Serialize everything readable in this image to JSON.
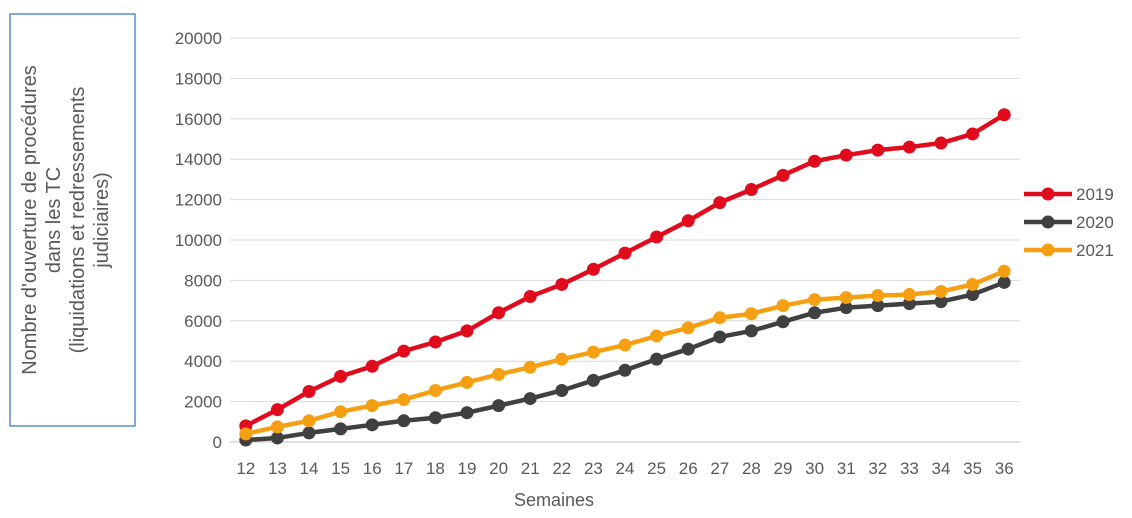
{
  "chart_data": {
    "type": "line",
    "title": "",
    "xlabel": "Semaines",
    "ylabel_lines": [
      "Nombre d'ouverture de procédures",
      "dans les TC",
      "(liquidations et redressements",
      "judiciaires)"
    ],
    "x": [
      "12",
      "13",
      "14",
      "15",
      "16",
      "17",
      "18",
      "19",
      "20",
      "21",
      "22",
      "23",
      "24",
      "25",
      "26",
      "27",
      "28",
      "29",
      "30",
      "31",
      "32",
      "33",
      "34",
      "35",
      "36"
    ],
    "ylim": [
      0,
      20000
    ],
    "yticks": [
      0,
      2000,
      4000,
      6000,
      8000,
      10000,
      12000,
      14000,
      16000,
      18000,
      20000
    ],
    "yticklabels": [
      "0",
      "2000",
      "4000",
      "6000",
      "8000",
      "10000",
      "12000",
      "14000",
      "16000",
      "18000",
      "20000"
    ],
    "grid": true,
    "legend_position": "right",
    "series": [
      {
        "name": "2019",
        "color": "#e00b1c",
        "values": [
          800,
          1600,
          2500,
          3250,
          3750,
          4500,
          4950,
          5500,
          6400,
          7200,
          7800,
          8550,
          9350,
          10150,
          10950,
          11850,
          12500,
          13200,
          13900,
          14200,
          14450,
          14600,
          14800,
          15250,
          16200
        ]
      },
      {
        "name": "2020",
        "color": "#404040",
        "values": [
          100,
          200,
          450,
          650,
          850,
          1050,
          1200,
          1450,
          1800,
          2150,
          2550,
          3050,
          3550,
          4100,
          4600,
          5200,
          5500,
          5950,
          6400,
          6650,
          6750,
          6850,
          6950,
          7300,
          7900
        ]
      },
      {
        "name": "2021",
        "color": "#f5a012",
        "values": [
          400,
          750,
          1050,
          1500,
          1800,
          2100,
          2550,
          2950,
          3350,
          3700,
          4100,
          4450,
          4800,
          5250,
          5650,
          6150,
          6350,
          6750,
          7050,
          7150,
          7250,
          7300,
          7450,
          7800,
          8450
        ]
      }
    ]
  }
}
